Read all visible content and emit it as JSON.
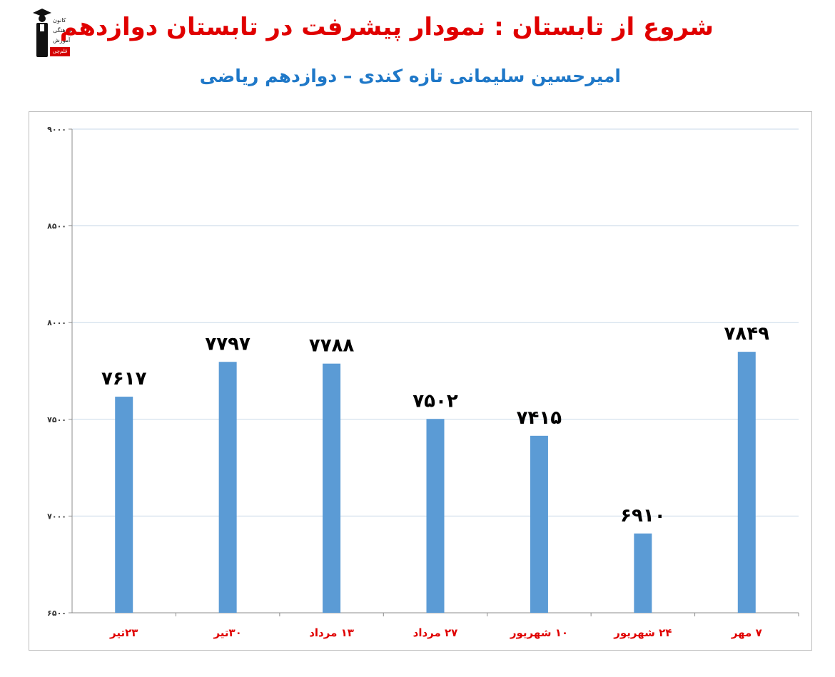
{
  "header": {
    "title": "شروع از تابستان : نمودار پیشرفت در تابستان دوازدهم",
    "subtitle": "امیرحسین سلیمانی تازه کندی – دوازدهم ریاضی"
  },
  "logo": {
    "line1": "کانون",
    "line2": "فرهنگی",
    "line3": "آموزش",
    "badge": "قلم‌چی"
  },
  "colors": {
    "title": "#e00000",
    "subtitle": "#1f78c8",
    "bar": "#5b9bd5",
    "category_label": "#e00000",
    "gridline": "#c9d9e8"
  },
  "chart_data": {
    "type": "bar",
    "title": "",
    "xlabel": "",
    "ylabel": "",
    "categories": [
      "۲۳تیر",
      "۳۰تیر",
      "۱۳ مرداد",
      "۲۷ مرداد",
      "۱۰ شهریور",
      "۲۴ شهریور",
      "۷ مهر"
    ],
    "values": [
      7617,
      7797,
      7788,
      7502,
      7415,
      6910,
      7849
    ],
    "data_labels": [
      "۷۶۱۷",
      "۷۷۹۷",
      "۷۷۸۸",
      "۷۵۰۲",
      "۷۴۱۵",
      "۶۹۱۰",
      "۷۸۴۹"
    ],
    "ylim": [
      6500,
      9000
    ],
    "yticks": [
      6500,
      7000,
      7500,
      8000,
      8500,
      9000
    ],
    "ytick_labels": [
      "۶۵۰۰",
      "۷۰۰۰",
      "۷۵۰۰",
      "۸۰۰۰",
      "۸۵۰۰",
      "۹۰۰۰"
    ],
    "grid": true,
    "legend": "none"
  }
}
